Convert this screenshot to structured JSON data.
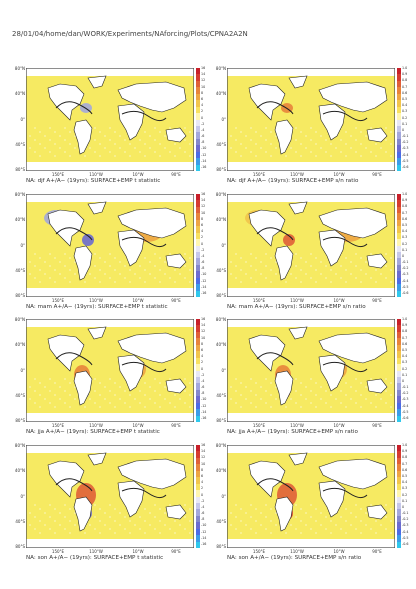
{
  "header": "28/01/04/home/dan/WORK/Experiments/NAforcing/Plots/CPNA2A2N",
  "colors": {
    "ocean_fill": "#f6ea62",
    "land": "#ffffff",
    "coast": "#222222",
    "positive_scale": [
      "#fff6b0",
      "#f8e160",
      "#f2c54c",
      "#eea544",
      "#e8843c",
      "#e06038",
      "#d63c30",
      "#c8202a"
    ],
    "negative_scale": [
      "#e8e8f6",
      "#c6c8ea",
      "#a4a8dc",
      "#8488cc",
      "#6c6cd0",
      "#4c6ce6",
      "#3c9ce8",
      "#30c8ec"
    ]
  },
  "axes": {
    "lat_labels": [
      "80°N",
      "40°N",
      "0°",
      "40°S",
      "80°S"
    ],
    "lon_labels": [
      "150°E",
      "110°W",
      "10°W",
      "90°E"
    ]
  },
  "colorbars": {
    "t": [
      "16",
      "14",
      "12",
      "10",
      "8",
      "6",
      "4",
      "2",
      "0",
      "-2",
      "-4",
      "-6",
      "-8",
      "-10",
      "-12",
      "-14",
      "-16"
    ],
    "sn": [
      "1.0",
      "0.9",
      "0.8",
      "0.7",
      "0.6",
      "0.5",
      "0.4",
      "0.3",
      "0.2",
      "0.1",
      "0",
      "-0.1",
      "-0.2",
      "-0.3",
      "-0.4",
      "-0.5",
      "-0.6"
    ]
  },
  "panels": [
    {
      "season": "djf",
      "kind": "t",
      "caption": "NA: djf A+/A− (19yrs): SURFACE+EMP t statistic"
    },
    {
      "season": "djf",
      "kind": "sn",
      "caption": "NA: djf A+/A− (19yrs): SURFACE+EMP s/n ratio"
    },
    {
      "season": "mam",
      "kind": "t",
      "caption": "NA: mam A+/A− (19yrs): SURFACE+EMP t statistic"
    },
    {
      "season": "mam",
      "kind": "sn",
      "caption": "NA: mam A+/A− (19yrs): SURFACE+EMP s/n ratio"
    },
    {
      "season": "jja",
      "kind": "t",
      "caption": "NA: jja A+/A− (19yrs): SURFACE+EMP t statistic"
    },
    {
      "season": "jja",
      "kind": "sn",
      "caption": "NA: jja A+/A− (19yrs): SURFACE+EMP s/n ratio"
    },
    {
      "season": "son",
      "kind": "t",
      "caption": "NA: son A+/A− (19yrs): SURFACE+EMP t statistic"
    },
    {
      "season": "son",
      "kind": "sn",
      "caption": "NA: son A+/A− (19yrs): SURFACE+EMP s/n ratio"
    }
  ],
  "chart_data": [
    {
      "type": "heatmap",
      "title": "NA: djf A+/A− (19yrs): SURFACE+EMP t statistic",
      "colorbar_range": [
        -16,
        16
      ],
      "xlabel": "",
      "ylabel": ""
    },
    {
      "type": "heatmap",
      "title": "NA: djf A+/A− (19yrs): SURFACE+EMP s/n ratio",
      "colorbar_range": [
        -0.6,
        1.0
      ],
      "xlabel": "",
      "ylabel": ""
    },
    {
      "type": "heatmap",
      "title": "NA: mam A+/A− (19yrs): SURFACE+EMP t statistic",
      "colorbar_range": [
        -16,
        16
      ],
      "xlabel": "",
      "ylabel": ""
    },
    {
      "type": "heatmap",
      "title": "NA: mam A+/A− (19yrs): SURFACE+EMP s/n ratio",
      "colorbar_range": [
        -0.6,
        1.0
      ],
      "xlabel": "",
      "ylabel": ""
    },
    {
      "type": "heatmap",
      "title": "NA: jja A+/A− (19yrs): SURFACE+EMP t statistic",
      "colorbar_range": [
        -16,
        16
      ],
      "xlabel": "",
      "ylabel": ""
    },
    {
      "type": "heatmap",
      "title": "NA: jja A+/A− (19yrs): SURFACE+EMP s/n ratio",
      "colorbar_range": [
        -0.6,
        1.0
      ],
      "xlabel": "",
      "ylabel": ""
    },
    {
      "type": "heatmap",
      "title": "NA: son A+/A− (19yrs): SURFACE+EMP t statistic",
      "colorbar_range": [
        -16,
        16
      ],
      "xlabel": "",
      "ylabel": ""
    },
    {
      "type": "heatmap",
      "title": "NA: son A+/A− (19yrs): SURFACE+EMP s/n ratio",
      "colorbar_range": [
        -0.6,
        1.0
      ],
      "xlabel": "",
      "ylabel": ""
    }
  ]
}
